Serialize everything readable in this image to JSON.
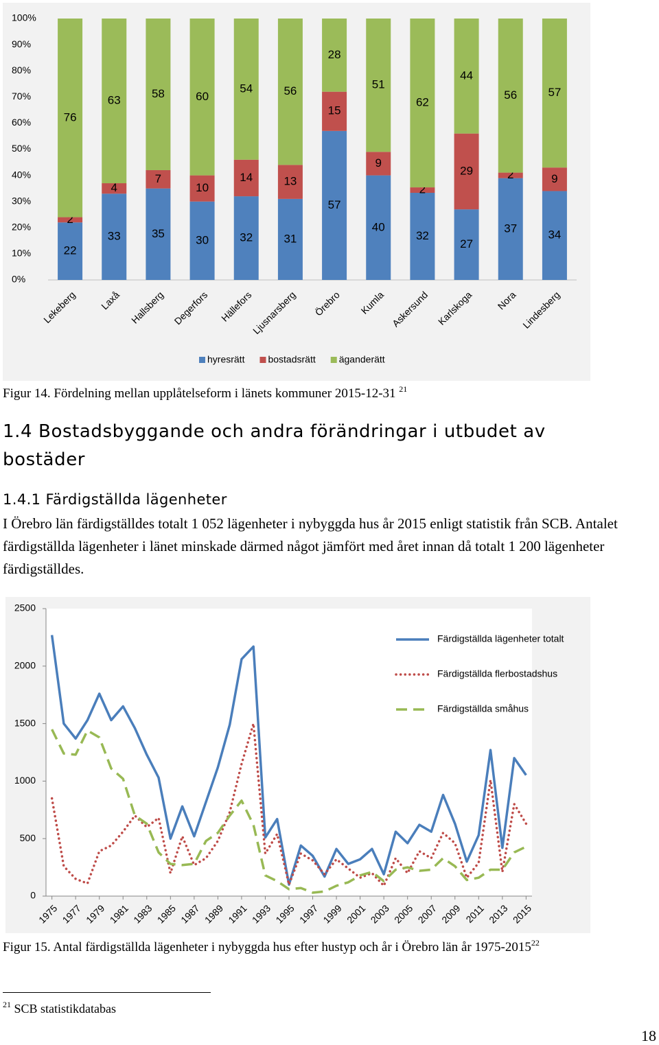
{
  "chart_data": [
    {
      "type": "bar",
      "stacking": "percent",
      "categories": [
        "Lekeberg",
        "Laxå",
        "Hallsberg",
        "Degerfors",
        "Hällefors",
        "Ljusnarsberg",
        "Örebro",
        "Kumla",
        "Askersund",
        "Karlskoga",
        "Nora",
        "Lindesberg"
      ],
      "series": [
        {
          "name": "hyresrätt",
          "color": "#4f81bd",
          "values": [
            22,
            33,
            35,
            30,
            32,
            31,
            57,
            40,
            32,
            27,
            37,
            34
          ]
        },
        {
          "name": "bostadsrätt",
          "color": "#c0504d",
          "values": [
            2,
            4,
            7,
            10,
            14,
            13,
            15,
            9,
            2,
            29,
            2,
            9
          ]
        },
        {
          "name": "äganderätt",
          "color": "#9bbb59",
          "values": [
            76,
            63,
            58,
            60,
            54,
            56,
            28,
            51,
            62,
            44,
            56,
            57
          ]
        }
      ],
      "ylim": [
        0,
        100
      ],
      "yticks": [
        {
          "value": 0,
          "label": "0%"
        },
        {
          "value": 10,
          "label": "10%"
        },
        {
          "value": 20,
          "label": "20%"
        },
        {
          "value": 30,
          "label": "30%"
        },
        {
          "value": 40,
          "label": "40%"
        },
        {
          "value": 50,
          "label": "50%"
        },
        {
          "value": 60,
          "label": "60%"
        },
        {
          "value": 70,
          "label": "70%"
        },
        {
          "value": 80,
          "label": "80%"
        },
        {
          "value": 90,
          "label": "90%"
        },
        {
          "value": 100,
          "label": "100%"
        }
      ],
      "grid": false,
      "legend": "bottom"
    },
    {
      "type": "line",
      "x": [
        1975,
        1976,
        1977,
        1978,
        1979,
        1980,
        1981,
        1982,
        1983,
        1984,
        1985,
        1986,
        1987,
        1988,
        1989,
        1990,
        1991,
        1992,
        1993,
        1994,
        1995,
        1996,
        1997,
        1998,
        1999,
        2000,
        2001,
        2002,
        2003,
        2004,
        2005,
        2006,
        2007,
        2008,
        2009,
        2010,
        2011,
        2012,
        2013,
        2014,
        2015
      ],
      "series": [
        {
          "name": "Färdigställda lägenheter totalt",
          "color": "#4a7ebb",
          "style": "solid",
          "values": [
            2270,
            1500,
            1370,
            1530,
            1760,
            1530,
            1650,
            1460,
            1230,
            1030,
            500,
            780,
            520,
            820,
            1120,
            1490,
            2060,
            2170,
            510,
            670,
            100,
            440,
            350,
            170,
            410,
            280,
            320,
            410,
            190,
            560,
            460,
            620,
            560,
            880,
            630,
            300,
            530,
            1270,
            420,
            1200,
            1052
          ]
        },
        {
          "name": "Färdigställda flerbostadshus",
          "color": "#be4b48",
          "style": "dotted",
          "values": [
            850,
            260,
            150,
            110,
            390,
            440,
            560,
            700,
            600,
            680,
            200,
            520,
            270,
            330,
            480,
            730,
            1150,
            1500,
            370,
            540,
            100,
            370,
            310,
            190,
            320,
            240,
            160,
            200,
            90,
            330,
            200,
            390,
            330,
            550,
            460,
            160,
            290,
            1010,
            210,
            800,
            630
          ]
        },
        {
          "name": "Färdigställda småhus",
          "color": "#98b954",
          "style": "dashed",
          "values": [
            1450,
            1240,
            1230,
            1440,
            1380,
            1110,
            1020,
            700,
            630,
            380,
            280,
            270,
            280,
            480,
            550,
            700,
            830,
            620,
            180,
            130,
            60,
            70,
            30,
            40,
            90,
            120,
            180,
            210,
            130,
            230,
            250,
            220,
            230,
            330,
            260,
            140,
            160,
            230,
            230,
            380,
            430
          ]
        }
      ],
      "xlim": [
        1974.5,
        2015.5
      ],
      "xticks": [
        1975,
        1977,
        1979,
        1981,
        1983,
        1985,
        1987,
        1989,
        1991,
        1993,
        1995,
        1997,
        1999,
        2001,
        2003,
        2005,
        2007,
        2009,
        2011,
        2013,
        2015
      ],
      "ylim": [
        0,
        2500
      ],
      "yticks": [
        0,
        500,
        1000,
        1500,
        2000,
        2500
      ],
      "grid": false,
      "legend": "top-right"
    }
  ],
  "figure_14_caption": {
    "text": "Figur 14. Fördelning mellan upplåtelseform i länets kommuner 2015-12-31",
    "note": "21"
  },
  "heading": "1.4 Bostadsbyggande och andra förändringar i utbudet av bostäder",
  "subheading": "1.4.1 Färdigställda lägenheter",
  "paragraph": "I Örebro län färdigställdes totalt 1 052 lägenheter i nybyggda hus år 2015 enligt statistik från SCB. Antalet färdigställda lägenheter i länet minskade därmed något jämfört med året innan då totalt 1 200 lägenheter färdigställdes.",
  "figure_15_caption": {
    "text": "Figur 15. Antal färdigställda lägenheter i nybyggda hus efter hustyp och år i Örebro län år 1975-2015",
    "note": "22"
  },
  "footnote": {
    "note": "21",
    "text": "SCB statistikdatabas"
  },
  "page_number": "18"
}
